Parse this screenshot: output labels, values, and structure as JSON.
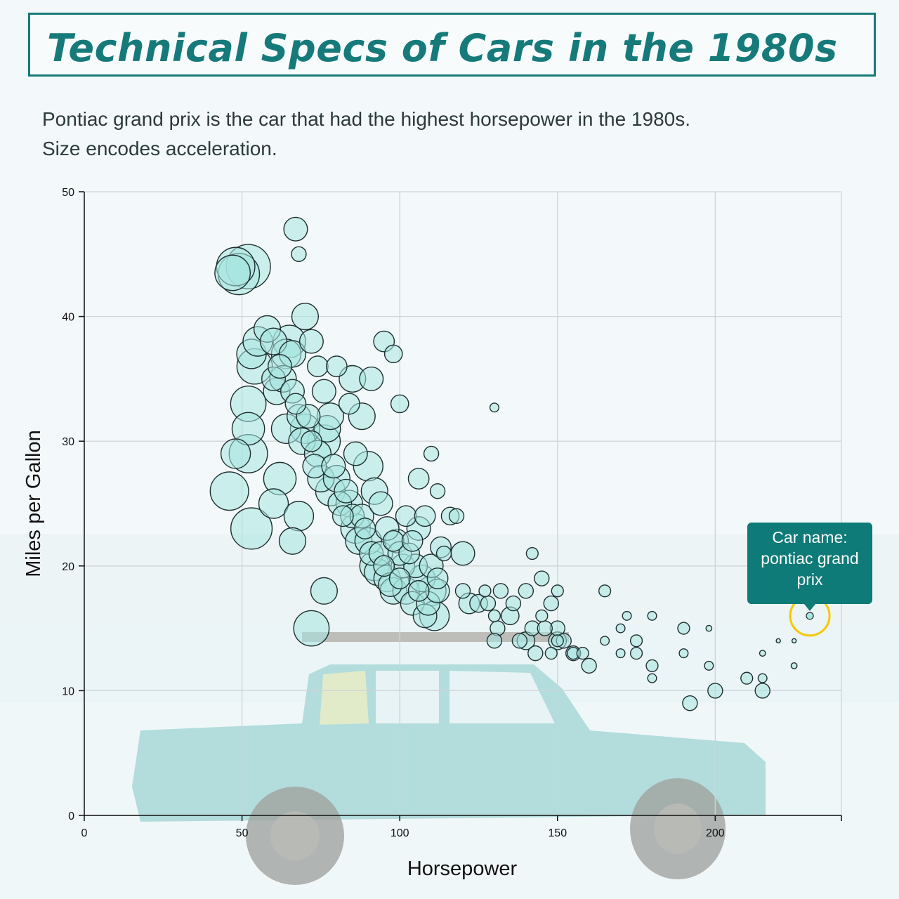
{
  "header": {
    "title": "Technical Specs of Cars in the 1980s",
    "subtitle_line1": "Pontiac grand prix is the car that had the highest horsepower in the 1980s.",
    "subtitle_line2": "Size encodes acceleration."
  },
  "tooltip": {
    "line1": "Car name:",
    "line2": "pontiac grand",
    "line3": "prix"
  },
  "colors": {
    "accent": "#167a7a",
    "point_fill": "#a8e6e0",
    "point_stroke": "#1e2e2e",
    "highlight": "#f5c800",
    "car_body": "#7fc6c4"
  },
  "chart_data": {
    "type": "scatter",
    "title": "Technical Specs of Cars in the 1980s",
    "xlabel": "Horsepower",
    "ylabel": "Miles per Gallon",
    "xlim": [
      0,
      240
    ],
    "ylim": [
      0,
      50
    ],
    "x_ticks": [
      0,
      50,
      100,
      150,
      200
    ],
    "y_ticks": [
      0,
      10,
      20,
      30,
      40,
      50
    ],
    "grid": true,
    "size_encoding": "acceleration",
    "highlight": {
      "name": "pontiac grand prix",
      "x": 230,
      "y": 16
    },
    "points": [
      [
        46,
        26,
        20
      ],
      [
        47,
        43.5,
        19
      ],
      [
        48,
        44,
        20
      ],
      [
        49,
        43.4,
        21
      ],
      [
        52,
        44,
        22
      ],
      [
        52,
        33,
        19
      ],
      [
        52,
        29,
        20
      ],
      [
        53,
        23,
        21
      ],
      [
        52,
        31,
        18
      ],
      [
        48,
        29,
        17
      ],
      [
        53,
        37,
        17
      ],
      [
        54,
        36,
        19
      ],
      [
        55,
        38,
        17
      ],
      [
        58,
        39,
        16
      ],
      [
        60,
        38,
        16
      ],
      [
        60,
        35,
        15
      ],
      [
        61,
        34,
        16
      ],
      [
        62,
        36,
        15
      ],
      [
        63,
        35,
        16
      ],
      [
        64,
        37,
        17
      ],
      [
        65,
        38,
        18
      ],
      [
        66,
        37,
        16
      ],
      [
        66,
        34,
        15
      ],
      [
        67,
        33,
        14
      ],
      [
        68,
        32,
        15
      ],
      [
        69,
        30,
        16
      ],
      [
        70,
        31,
        17
      ],
      [
        71,
        32,
        15
      ],
      [
        72,
        30,
        14
      ],
      [
        73,
        28,
        15
      ],
      [
        74,
        29,
        16
      ],
      [
        75,
        27,
        16
      ],
      [
        76,
        30,
        18
      ],
      [
        77,
        31,
        16
      ],
      [
        78,
        26,
        17
      ],
      [
        79,
        28,
        15
      ],
      [
        80,
        27,
        16
      ],
      [
        81,
        25,
        15
      ],
      [
        82,
        24,
        14
      ],
      [
        83,
        26,
        15
      ],
      [
        84,
        25,
        16
      ],
      [
        85,
        24,
        15
      ],
      [
        86,
        23,
        17
      ],
      [
        87,
        22,
        16
      ],
      [
        88,
        24,
        15
      ],
      [
        89,
        23,
        14
      ],
      [
        90,
        22,
        16
      ],
      [
        91,
        21,
        15
      ],
      [
        92,
        20,
        17
      ],
      [
        93,
        19.5,
        16
      ],
      [
        94,
        21,
        15
      ],
      [
        95,
        20,
        14
      ],
      [
        96,
        19,
        16
      ],
      [
        97,
        18.5,
        15
      ],
      [
        98,
        18,
        16
      ],
      [
        99,
        22,
        15
      ],
      [
        100,
        19,
        14
      ],
      [
        101,
        20,
        15
      ],
      [
        102,
        18,
        16
      ],
      [
        103,
        21,
        14
      ],
      [
        104,
        17,
        15
      ],
      [
        105,
        20,
        15
      ],
      [
        106,
        18,
        14
      ],
      [
        107,
        19,
        16
      ],
      [
        108,
        16,
        15
      ],
      [
        109,
        17,
        15
      ],
      [
        110,
        18,
        17
      ],
      [
        111,
        16,
        17
      ],
      [
        112,
        18,
        15
      ],
      [
        113,
        21.5,
        14
      ],
      [
        95,
        38,
        14
      ],
      [
        98,
        37,
        13
      ],
      [
        100,
        33,
        13
      ],
      [
        106,
        27,
        14
      ],
      [
        112,
        26,
        12
      ],
      [
        114,
        21,
        12
      ],
      [
        116,
        24,
        13
      ],
      [
        118,
        24,
        12
      ],
      [
        120,
        18,
        12
      ],
      [
        122,
        17,
        14
      ],
      [
        125,
        17,
        13
      ],
      [
        127,
        18,
        11
      ],
      [
        128,
        17,
        12
      ],
      [
        130,
        16,
        11
      ],
      [
        131,
        15,
        12
      ],
      [
        132,
        18,
        12
      ],
      [
        135,
        16,
        13
      ],
      [
        136,
        17,
        12
      ],
      [
        138,
        14,
        12
      ],
      [
        140,
        18,
        12
      ],
      [
        142,
        15,
        12
      ],
      [
        145,
        16,
        11
      ],
      [
        148,
        17,
        12
      ],
      [
        150,
        18,
        11
      ],
      [
        150,
        15,
        12
      ],
      [
        150,
        14,
        11
      ],
      [
        152,
        14,
        12
      ],
      [
        155,
        13,
        11
      ],
      [
        158,
        13,
        11
      ],
      [
        160,
        12,
        12
      ],
      [
        165,
        18,
        11
      ],
      [
        165,
        14,
        10
      ],
      [
        170,
        13,
        10
      ],
      [
        170,
        15,
        10
      ],
      [
        172,
        16,
        10
      ],
      [
        175,
        14,
        11
      ],
      [
        175,
        13,
        11
      ],
      [
        180,
        12,
        11
      ],
      [
        180,
        11,
        10
      ],
      [
        180,
        16,
        10
      ],
      [
        190,
        13,
        10
      ],
      [
        190,
        15,
        11
      ],
      [
        192,
        9,
        12
      ],
      [
        198,
        12,
        10
      ],
      [
        198,
        15,
        9
      ],
      [
        200,
        10,
        12
      ],
      [
        210,
        11,
        11
      ],
      [
        215,
        11,
        10
      ],
      [
        215,
        13,
        9
      ],
      [
        215,
        10,
        12
      ],
      [
        220,
        14,
        8
      ],
      [
        225,
        12,
        9
      ],
      [
        225,
        14,
        8
      ],
      [
        130,
        14,
        12
      ],
      [
        140,
        14,
        13
      ],
      [
        143,
        13,
        12
      ],
      [
        146,
        15,
        12
      ],
      [
        148,
        13,
        11
      ],
      [
        150,
        14,
        13
      ],
      [
        145,
        19,
        12
      ],
      [
        142,
        21,
        11
      ],
      [
        155,
        13,
        12
      ],
      [
        60,
        25,
        17
      ],
      [
        62,
        27,
        18
      ],
      [
        64,
        31,
        17
      ],
      [
        66,
        22,
        16
      ],
      [
        68,
        24,
        17
      ],
      [
        70,
        40,
        16
      ],
      [
        72,
        38,
        15
      ],
      [
        74,
        36,
        14
      ],
      [
        76,
        34,
        15
      ],
      [
        78,
        32,
        16
      ],
      [
        80,
        36,
        14
      ],
      [
        84,
        33,
        14
      ],
      [
        86,
        29,
        15
      ],
      [
        88,
        32,
        16
      ],
      [
        90,
        28,
        17
      ],
      [
        92,
        26,
        16
      ],
      [
        94,
        25,
        15
      ],
      [
        96,
        23,
        15
      ],
      [
        98,
        22,
        14
      ],
      [
        100,
        21,
        15
      ],
      [
        102,
        24,
        14
      ],
      [
        104,
        22,
        14
      ],
      [
        106,
        23,
        15
      ],
      [
        108,
        24,
        14
      ],
      [
        110,
        20,
        15
      ],
      [
        112,
        19,
        14
      ],
      [
        76,
        18,
        16
      ],
      [
        67,
        47,
        15
      ],
      [
        68,
        45,
        12
      ],
      [
        85,
        35,
        16
      ],
      [
        91,
        35,
        15
      ],
      [
        110,
        29,
        12
      ],
      [
        130,
        32.7,
        10
      ],
      [
        120,
        21,
        15
      ],
      [
        72,
        15,
        19
      ]
    ]
  }
}
